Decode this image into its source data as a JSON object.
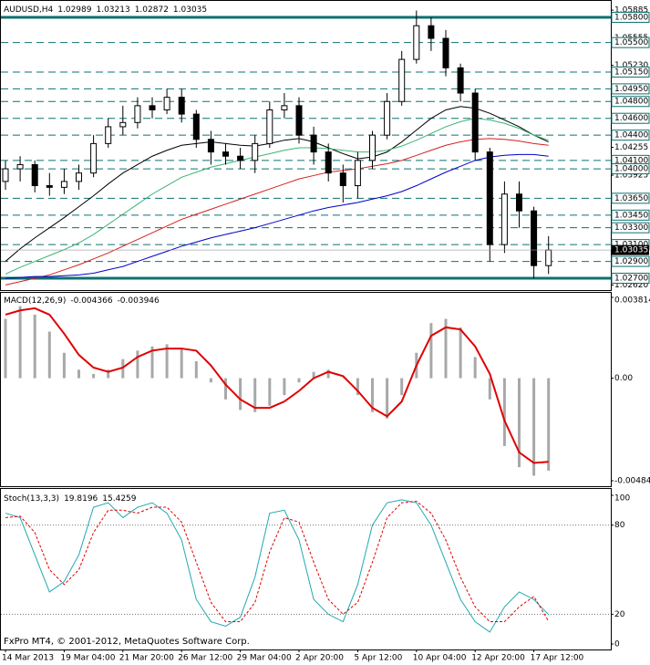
{
  "chart_data": [
    {
      "type": "candlestick",
      "title": "AUDUSD,H4",
      "header_values": [
        1.02989,
        1.03213,
        1.02872,
        1.03035
      ],
      "categories": [
        "14 Mar 2013",
        null,
        null,
        null,
        "19 Mar 04:00",
        null,
        null,
        null,
        "21 Mar 20:00",
        null,
        null,
        null,
        "26 Mar 12:00",
        null,
        null,
        null,
        "29 Mar 04:00",
        null,
        null,
        null,
        "2 Apr 20:00",
        null,
        null,
        null,
        "5 Apr 12:00",
        null,
        null,
        null,
        "10 Apr 04:00",
        null,
        null,
        null,
        "12 Apr 20:00",
        null,
        null,
        null,
        "17 Apr 12:00",
        null
      ],
      "candles": {
        "open": [
          1.0385,
          1.04,
          1.0405,
          1.038,
          1.0378,
          1.0385,
          1.0395,
          1.043,
          1.045,
          1.0455,
          1.0475,
          1.047,
          1.0485,
          1.0465,
          1.0435,
          1.042,
          1.0415,
          1.041,
          1.043,
          1.047,
          1.0475,
          1.044,
          1.042,
          1.0395,
          1.038,
          1.041,
          1.044,
          1.048,
          1.053,
          1.057,
          1.0555,
          1.052,
          1.049,
          1.042,
          1.031,
          1.037,
          1.035,
          1.0285
        ],
        "high": [
          1.041,
          1.0415,
          1.041,
          1.0395,
          1.04,
          1.0405,
          1.044,
          1.046,
          1.0475,
          1.0485,
          1.0485,
          1.0495,
          1.0495,
          1.047,
          1.0445,
          1.043,
          1.0425,
          1.044,
          1.048,
          1.049,
          1.0485,
          1.045,
          1.043,
          1.0405,
          1.042,
          1.0445,
          1.049,
          1.054,
          1.0588,
          1.058,
          1.0565,
          1.0525,
          1.0495,
          1.0425,
          1.0385,
          1.0385,
          1.0355,
          1.032
        ],
        "low": [
          1.0375,
          1.0385,
          1.0372,
          1.0368,
          1.037,
          1.0375,
          1.039,
          1.0425,
          1.044,
          1.0448,
          1.046,
          1.0465,
          1.0455,
          1.0425,
          1.0405,
          1.0405,
          1.04,
          1.0395,
          1.0425,
          1.046,
          1.043,
          1.0405,
          1.0385,
          1.036,
          1.0365,
          1.04,
          1.0435,
          1.0475,
          1.0525,
          1.054,
          1.051,
          1.048,
          1.041,
          1.029,
          1.03,
          1.033,
          1.027,
          1.0275
        ],
        "close": [
          1.04,
          1.0405,
          1.038,
          1.0378,
          1.0385,
          1.0395,
          1.043,
          1.045,
          1.0455,
          1.0475,
          1.047,
          1.0485,
          1.0465,
          1.0435,
          1.042,
          1.0415,
          1.041,
          1.043,
          1.047,
          1.0475,
          1.044,
          1.042,
          1.0395,
          1.038,
          1.041,
          1.044,
          1.048,
          1.053,
          1.057,
          1.0555,
          1.052,
          1.049,
          1.042,
          1.031,
          1.037,
          1.035,
          1.0285,
          1.03035
        ]
      },
      "series": [
        {
          "color": "#000000",
          "values": [
            1.029,
            1.0305,
            1.0318,
            1.033,
            1.0342,
            1.0355,
            1.0368,
            1.0382,
            1.0395,
            1.0405,
            1.0415,
            1.0422,
            1.0428,
            1.043,
            1.0432,
            1.043,
            1.0428,
            1.0427,
            1.043,
            1.0434,
            1.0436,
            1.0432,
            1.0425,
            1.0418,
            1.0412,
            1.0414,
            1.042,
            1.0432,
            1.0446,
            1.046,
            1.047,
            1.0474,
            1.0472,
            1.0466,
            1.0458,
            1.045,
            1.044,
            1.0432
          ]
        },
        {
          "color": "#3cb371",
          "values": [
            1.0275,
            1.0283,
            1.029,
            1.0297,
            1.0304,
            1.0312,
            1.0322,
            1.0334,
            1.0346,
            1.0358,
            1.037,
            1.038,
            1.039,
            1.0396,
            1.0402,
            1.0406,
            1.041,
            1.0414,
            1.0418,
            1.0422,
            1.0425,
            1.0425,
            1.0424,
            1.0422,
            1.042,
            1.042,
            1.0422,
            1.0427,
            1.0434,
            1.0442,
            1.045,
            1.0456,
            1.046,
            1.0458,
            1.0454,
            1.0448,
            1.044,
            1.0434
          ]
        },
        {
          "color": "#d42020",
          "values": [
            1.0262,
            1.0266,
            1.027,
            1.0274,
            1.028,
            1.0286,
            1.0293,
            1.03,
            1.0308,
            1.0316,
            1.0324,
            1.0332,
            1.034,
            1.0346,
            1.0352,
            1.0358,
            1.0364,
            1.037,
            1.0376,
            1.0382,
            1.0388,
            1.0392,
            1.0396,
            1.0398,
            1.04,
            1.0403,
            1.0406,
            1.041,
            1.0416,
            1.0422,
            1.0428,
            1.0432,
            1.0435,
            1.0436,
            1.0435,
            1.0433,
            1.043,
            1.0428
          ]
        },
        {
          "color": "#0000c8",
          "values": [
            1.027,
            1.0271,
            1.0272,
            1.0272,
            1.0273,
            1.0274,
            1.0276,
            1.028,
            1.0284,
            1.029,
            1.0296,
            1.0302,
            1.0308,
            1.0313,
            1.0318,
            1.0322,
            1.0326,
            1.033,
            1.0335,
            1.034,
            1.0345,
            1.035,
            1.0354,
            1.0357,
            1.036,
            1.0364,
            1.0368,
            1.0373,
            1.038,
            1.0388,
            1.0396,
            1.0403,
            1.041,
            1.0414,
            1.0416,
            1.0417,
            1.0417,
            1.0415
          ]
        }
      ],
      "levels": [
        {
          "value": 1.058,
          "label": "1.05800",
          "style": "solid"
        },
        {
          "value": 1.055,
          "label": "1.05500",
          "style": "dashed"
        },
        {
          "value": 1.0515,
          "label": "1.05150",
          "style": "dashed"
        },
        {
          "value": 1.0495,
          "label": "1.04950",
          "style": "dashed"
        },
        {
          "value": 1.048,
          "label": "1.04800",
          "style": "dashed"
        },
        {
          "value": 1.046,
          "label": "1.04600",
          "style": "dashed"
        },
        {
          "value": 1.044,
          "label": "1.04400",
          "style": "dashed"
        },
        {
          "value": 1.041,
          "label": "1.04100",
          "style": "dashed"
        },
        {
          "value": 1.04,
          "label": "1.04000",
          "style": "dashed"
        },
        {
          "value": 1.0365,
          "label": "1.03650",
          "style": "dashed"
        },
        {
          "value": 1.0345,
          "label": "1.03450",
          "style": "dashed"
        },
        {
          "value": 1.033,
          "label": "1.03300",
          "style": "dashed"
        },
        {
          "value": 1.031,
          "label": "1.03100",
          "style": "dashed"
        },
        {
          "value": 1.029,
          "label": "1.02900",
          "style": "dashed"
        },
        {
          "value": 1.027,
          "label": "1.02700",
          "style": "solid"
        }
      ],
      "level_color": "#0e7070",
      "current_price": 1.03035,
      "ylim": [
        1.02581,
        1.05984
      ],
      "yticks": [
        1.05885,
        1.05555,
        {
          "value": 1.0523,
          "label": "1.05230"
        },
        1.04255,
        1.03925,
        {
          "value": 1.0262,
          "label": "1.02620"
        }
      ],
      "grid": false
    },
    {
      "type": "macd",
      "title": "MACD(12,26,9)",
      "header_values": [
        -0.004366,
        -0.003946
      ],
      "series": [
        {
          "color": "#a8a8a8",
          "values": [
            0.0028,
            0.0034,
            0.003,
            0.0022,
            0.0012,
            0.0004,
            0.0002,
            0.0004,
            0.0009,
            0.0013,
            0.0015,
            0.0016,
            0.0014,
            0.0008,
            -0.0002,
            -0.001,
            -0.0015,
            -0.0016,
            -0.0013,
            -0.0008,
            -0.0002,
            0.0003,
            0.0004,
            0.0,
            -0.0008,
            -0.0016,
            -0.0019,
            -0.0008,
            0.0012,
            0.0026,
            0.0028,
            0.0024,
            0.001,
            -0.001,
            -0.0032,
            -0.0042,
            -0.0046,
            -0.004366
          ]
        },
        {
          "color": "#e00000",
          "values": [
            0.003,
            0.0032,
            0.0033,
            0.003,
            0.0021,
            0.0011,
            0.0005,
            0.0003,
            0.0005,
            0.001,
            0.0013,
            0.0014,
            0.0014,
            0.0013,
            0.0006,
            -0.0003,
            -0.001,
            -0.0014,
            -0.0014,
            -0.0011,
            -0.0006,
            0.0,
            0.0003,
            0.0001,
            -0.0006,
            -0.0014,
            -0.0018,
            -0.0011,
            0.0006,
            0.002,
            0.0024,
            0.0023,
            0.0015,
            0.0002,
            -0.002,
            -0.0035,
            -0.004,
            -0.003946
          ]
        }
      ],
      "ylim": [
        -0.00484,
        0.003814
      ],
      "yticks": [
        0.003814,
        {
          "value": 0,
          "label": "0.00"
        },
        -0.00484
      ],
      "grid": false
    },
    {
      "type": "stochastic",
      "title": "Stoch(13,3,3)",
      "header_values": [
        19.8196,
        15.4259
      ],
      "series": [
        {
          "color": "#20a8b0",
          "values": [
            88,
            85,
            60,
            35,
            42,
            60,
            92,
            95,
            85,
            92,
            95,
            88,
            70,
            30,
            15,
            12,
            18,
            45,
            88,
            90,
            70,
            30,
            20,
            15,
            40,
            80,
            95,
            97,
            95,
            80,
            55,
            30,
            15,
            8,
            25,
            35,
            30,
            19.8196
          ]
        },
        {
          "color": "#e00000",
          "values": [
            85,
            86,
            75,
            50,
            40,
            50,
            75,
            90,
            90,
            88,
            92,
            92,
            82,
            55,
            28,
            15,
            15,
            28,
            62,
            85,
            82,
            55,
            30,
            20,
            28,
            55,
            85,
            95,
            96,
            88,
            70,
            45,
            25,
            15,
            15,
            25,
            32,
            15.4259
          ]
        }
      ],
      "ylim": [
        0,
        100
      ],
      "yticks": [
        100,
        80,
        20,
        0
      ],
      "grid": true,
      "annotation": "FxPro MT4, © 2001-2012, MetaQuotes Software Corp."
    }
  ]
}
